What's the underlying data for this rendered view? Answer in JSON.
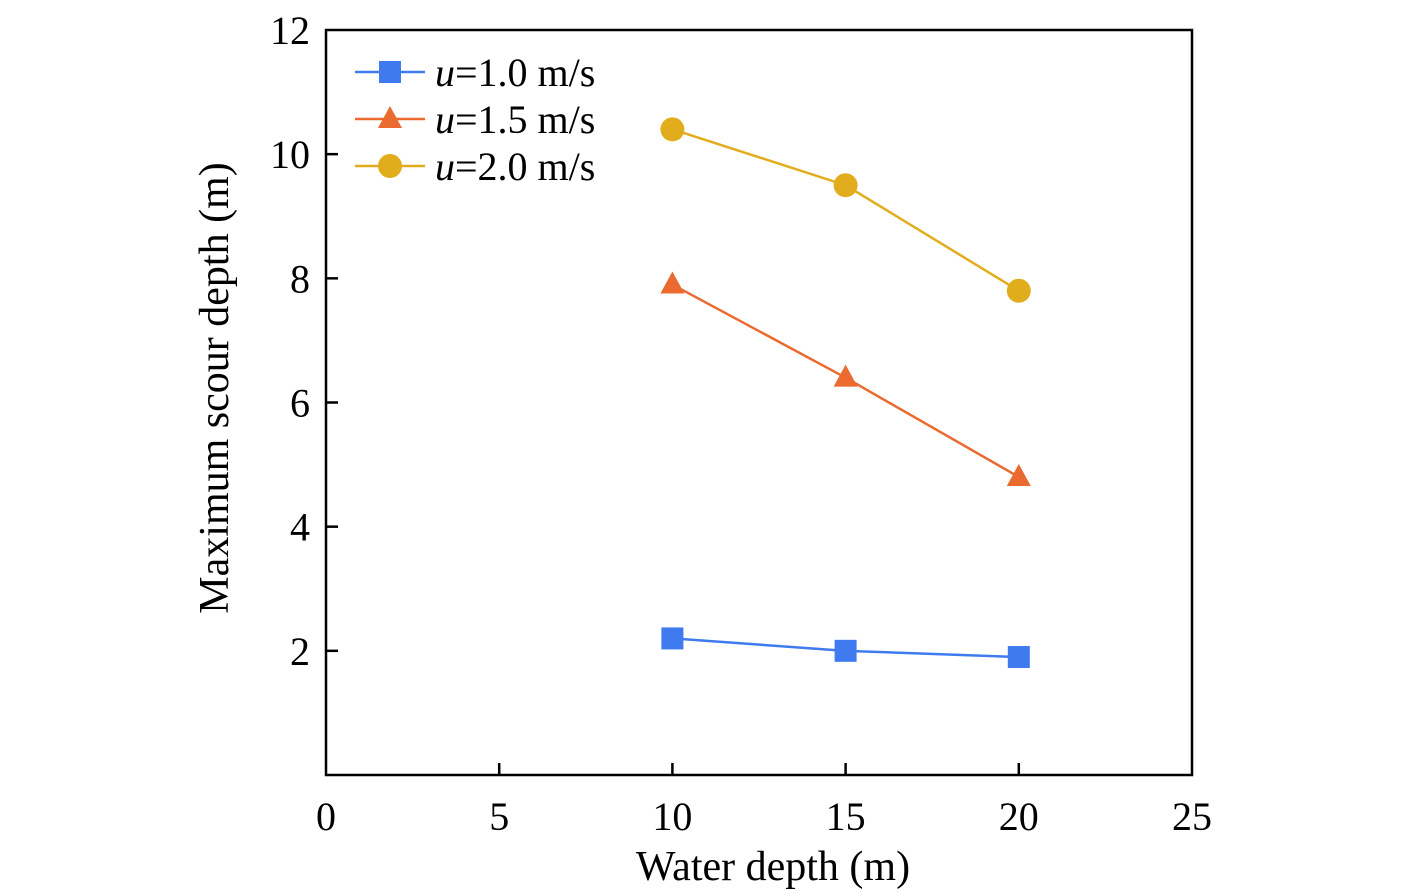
{
  "chart_data": {
    "type": "line",
    "xlabel": "Water depth (m)",
    "ylabel": "Maximum scour depth (m)",
    "xlim": [
      0,
      25
    ],
    "ylim": [
      0,
      12
    ],
    "xticks": [
      0,
      5,
      10,
      15,
      20,
      25
    ],
    "yticks": [
      2,
      4,
      6,
      8,
      10,
      12
    ],
    "grid": false,
    "legend_position": "top-left",
    "x": [
      10,
      15,
      20
    ],
    "series": [
      {
        "name_var": "u",
        "name_rest": "=1.0 m/s",
        "marker": "square",
        "color": "#3f7bef",
        "values": [
          2.2,
          2.0,
          1.9
        ]
      },
      {
        "name_var": "u",
        "name_rest": "=1.5 m/s",
        "marker": "triangle",
        "color": "#ea6a2f",
        "values": [
          7.9,
          6.4,
          4.8
        ]
      },
      {
        "name_var": "u",
        "name_rest": "=2.0 m/s",
        "marker": "circle",
        "color": "#e1ad1c",
        "values": [
          10.4,
          9.5,
          7.8
        ]
      }
    ]
  }
}
